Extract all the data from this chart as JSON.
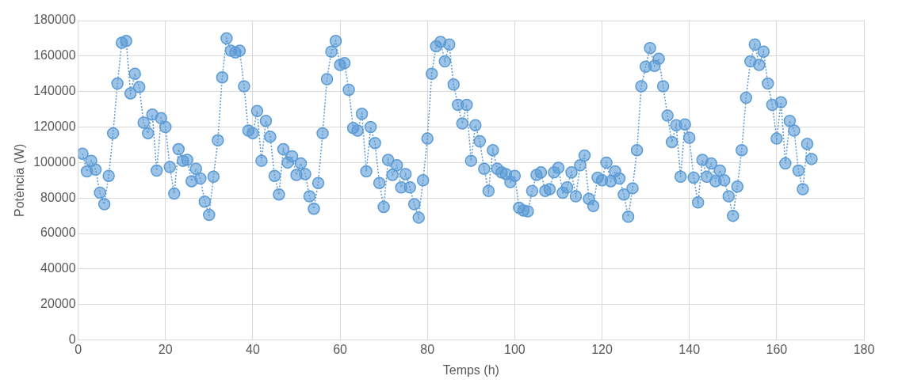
{
  "chart_data": {
    "type": "line",
    "xlabel": "Temps (h)",
    "ylabel": "Potència (W)",
    "x": [
      1,
      2,
      3,
      4,
      5,
      6,
      7,
      8,
      9,
      10,
      11,
      12,
      13,
      14,
      15,
      16,
      17,
      18,
      19,
      20,
      21,
      22,
      23,
      24,
      25,
      26,
      27,
      28,
      29,
      30,
      31,
      32,
      33,
      34,
      35,
      36,
      37,
      38,
      39,
      40,
      41,
      42,
      43,
      44,
      45,
      46,
      47,
      48,
      49,
      50,
      51,
      52,
      53,
      54,
      55,
      56,
      57,
      58,
      59,
      60,
      61,
      62,
      63,
      64,
      65,
      66,
      67,
      68,
      69,
      70,
      71,
      72,
      73,
      74,
      75,
      76,
      77,
      78,
      79,
      80,
      81,
      82,
      83,
      84,
      85,
      86,
      87,
      88,
      89,
      90,
      91,
      92,
      93,
      94,
      95,
      96,
      97,
      98,
      99,
      100,
      101,
      102,
      103,
      104,
      105,
      106,
      107,
      108,
      109,
      110,
      111,
      112,
      113,
      114,
      115,
      116,
      117,
      118,
      119,
      120,
      121,
      122,
      123,
      124,
      125,
      126,
      127,
      128,
      129,
      130,
      131,
      132,
      133,
      134,
      135,
      136,
      137,
      138,
      139,
      140,
      141,
      142,
      143,
      144,
      145,
      146,
      147,
      148,
      149,
      150,
      151,
      152,
      153,
      154,
      155,
      156,
      157,
      158,
      159,
      160,
      161,
      162,
      163,
      164,
      165,
      166,
      167,
      168
    ],
    "series": [
      {
        "color": "#5b9bd5",
        "values": [
          105000,
          95000,
          101000,
          96000,
          83000,
          76500,
          92500,
          116500,
          144500,
          167500,
          168500,
          139000,
          150000,
          142500,
          122500,
          116500,
          127000,
          95500,
          125000,
          120000,
          97500,
          82500,
          107500,
          101000,
          101500,
          89500,
          96500,
          91000,
          78000,
          70500,
          92000,
          112500,
          148000,
          170000,
          163000,
          162000,
          163000,
          143000,
          118000,
          116500,
          129000,
          101000,
          123500,
          114500,
          92500,
          82000,
          107500,
          100000,
          103500,
          93000,
          99500,
          93500,
          81000,
          74000,
          88500,
          116500,
          147000,
          162500,
          168500,
          155000,
          156000,
          141000,
          119500,
          118000,
          127500,
          95000,
          120000,
          111000,
          88500,
          75000,
          101500,
          93000,
          98500,
          86000,
          93500,
          86000,
          76500,
          69000,
          90000,
          113500,
          150000,
          165500,
          168000,
          157000,
          166500,
          144000,
          132500,
          122000,
          132500,
          101000,
          121000,
          112000,
          96500,
          84000,
          107000,
          96500,
          94500,
          93500,
          89000,
          92500,
          74500,
          73000,
          72500,
          84000,
          93000,
          94500,
          84000,
          85000,
          94500,
          97000,
          83000,
          86000,
          94500,
          81000,
          98500,
          104000,
          79500,
          75500,
          91500,
          90000,
          100000,
          89500,
          95000,
          91000,
          82000,
          69500,
          85500,
          107000,
          143000,
          154000,
          164500,
          154500,
          158500,
          143000,
          126500,
          111500,
          121000,
          92000,
          121500,
          114000,
          91500,
          77500,
          101500,
          92000,
          99500,
          89500,
          95500,
          90000,
          81000,
          70000,
          86500,
          107000,
          136500,
          157000,
          166500,
          155000,
          162500,
          144500,
          132500,
          113500,
          134000,
          99500,
          123500,
          118000,
          95500,
          85000,
          110500,
          102000
        ]
      }
    ],
    "xlim": [
      0,
      180
    ],
    "xticks": [
      0,
      20,
      40,
      60,
      80,
      100,
      120,
      140,
      160,
      180
    ],
    "ylim": [
      0,
      180000
    ],
    "yticks": [
      0,
      20000,
      40000,
      60000,
      80000,
      100000,
      120000,
      140000,
      160000,
      180000
    ],
    "grid": true,
    "legend": false,
    "marker": "circle",
    "line_style": "dotted"
  }
}
